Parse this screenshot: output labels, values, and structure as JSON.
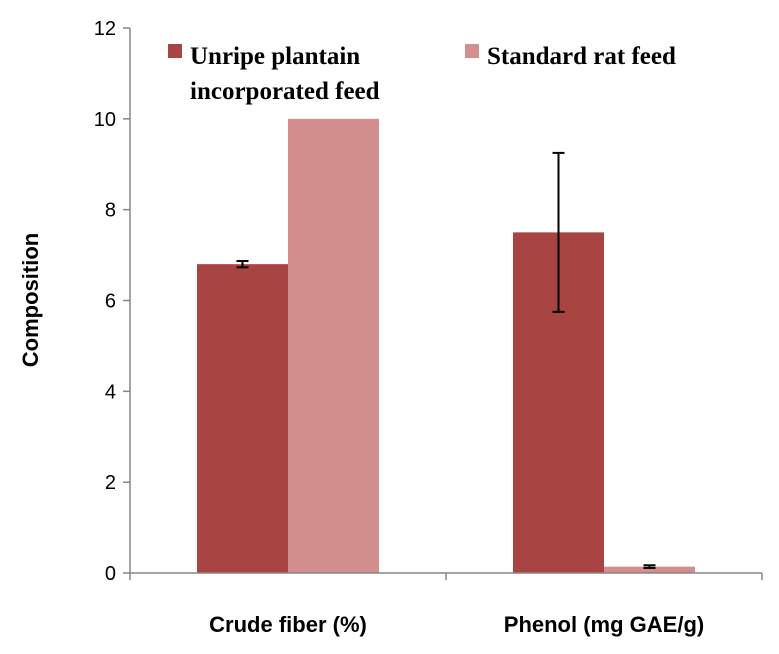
{
  "chart_data": {
    "type": "bar",
    "title": "",
    "xlabel": "",
    "ylabel": "Composition",
    "ylim": [
      0,
      12
    ],
    "yticks": [
      0,
      2,
      4,
      6,
      8,
      10,
      12
    ],
    "categories": [
      "Crude fiber (%)",
      "Phenol (mg GAE/g)"
    ],
    "series": [
      {
        "name_lines": [
          "Unripe plantain",
          "incorporated feed"
        ],
        "color": "#a84442",
        "values": [
          6.8,
          7.5
        ],
        "error": [
          0.07,
          1.75
        ]
      },
      {
        "name_lines": [
          "Standard rat feed"
        ],
        "color": "#d28f8e",
        "values": [
          10.0,
          0.14
        ],
        "error": [
          0.0,
          0.03
        ]
      }
    ],
    "grid": false,
    "legend_position": "top"
  }
}
